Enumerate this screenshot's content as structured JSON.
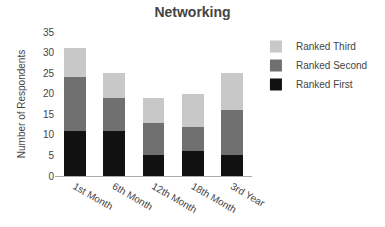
{
  "chart_data": {
    "type": "bar",
    "title": "Networking",
    "ylabel": "Number of Respondents",
    "categories": [
      "1st Month",
      "6th Month",
      "12th Month",
      "18th Month",
      "3rd Year"
    ],
    "series": [
      {
        "name": "Ranked First",
        "color": "#111111",
        "values": [
          11,
          11,
          5,
          6,
          5
        ]
      },
      {
        "name": "Ranked Second",
        "color": "#707070",
        "values": [
          13,
          8,
          8,
          6,
          11
        ]
      },
      {
        "name": "Ranked Third",
        "color": "#c8c8c8",
        "values": [
          7,
          6,
          6,
          8,
          9
        ]
      }
    ],
    "stacked": true,
    "ylim": [
      0,
      35
    ],
    "yticks": [
      0,
      5,
      10,
      15,
      20,
      25,
      30,
      35
    ],
    "grid": false,
    "legend": "upper right"
  }
}
